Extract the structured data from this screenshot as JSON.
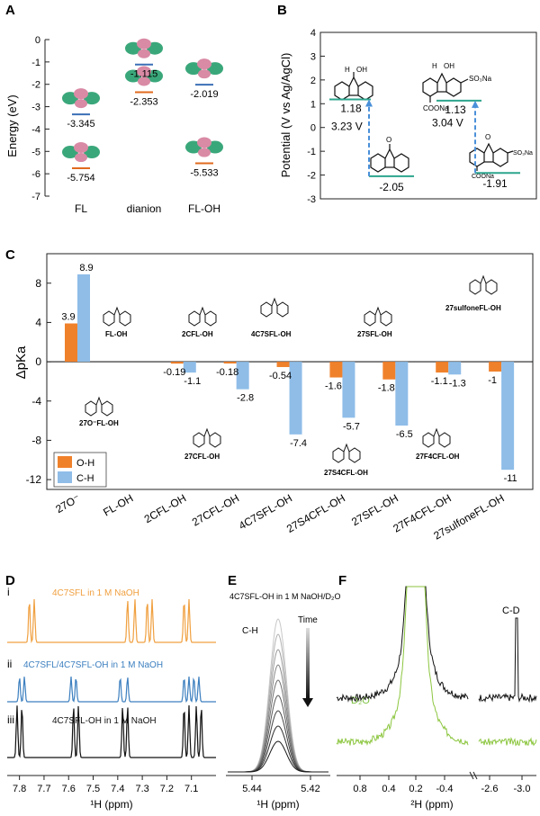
{
  "panels": {
    "A": {
      "label": "A",
      "ylabel": "Energy (eV)",
      "yticks": [
        "0",
        "-1",
        "-2",
        "-3",
        "-4",
        "-5",
        "-6",
        "-7"
      ],
      "categories": [
        "FL",
        "dianion",
        "FL-OH"
      ],
      "levels": [
        {
          "mol": "FL",
          "lumo": "-3.345",
          "homo": "-5.754"
        },
        {
          "mol": "dianion",
          "lumo": "-1.115",
          "homo": "-2.353"
        },
        {
          "mol": "FL-OH",
          "lumo": "-2.019",
          "homo": "-5.533"
        }
      ],
      "colors": {
        "lumo": "#3b6fb6",
        "homo": "#e06a1e",
        "lobe_green": "#3aa77a",
        "lobe_pink": "#d98aa5"
      }
    },
    "B": {
      "label": "B",
      "ylabel": "Potential (V vs Ag/AgCl)",
      "yticks": [
        "4",
        "3",
        "2",
        "1",
        "0",
        "-1",
        "-2",
        "-3"
      ],
      "values": {
        "fl_oh": "1.18",
        "fl_o": "-2.05",
        "s_oh": "1.13",
        "s_o": "-1.91"
      },
      "gaps": {
        "left": "3.23 V",
        "right": "3.04 V"
      },
      "subs": {
        "so3na": "SO₃Na",
        "coona": "COONa",
        "oh": "OH",
        "h": "H",
        "om": "O"
      },
      "colors": {
        "level": "#2ca58d",
        "arrow": "#4a90d9"
      }
    },
    "C": {
      "label": "C",
      "ylabel": "ΔpKa",
      "yticks": [
        "8",
        "4",
        "0",
        "-4",
        "-8",
        "-12"
      ],
      "legend": [
        "O-H",
        "C-H"
      ],
      "compounds": [
        "FL-OH",
        "2CFL-OH",
        "4C7SFL-OH",
        "27SFL-OH",
        "27sulfoneFL-OH",
        "27O⁻FL-OH",
        "27CFL-OH",
        "27S4CFL-OH",
        "27F4CFL-OH"
      ],
      "colors": {
        "oh": "#f0812b",
        "ch": "#8fbde8"
      }
    },
    "D": {
      "label": "D",
      "traces": [
        {
          "tag": "i",
          "text": "4C7SFL in 1 M NaOH",
          "color": "#f0a040"
        },
        {
          "tag": "ii",
          "text": "4C7SFL/4C7SFL-OH in 1 M NaOH",
          "color": "#3c7fbf"
        },
        {
          "tag": "iii",
          "text": "4C7SFL-OH in 1 M NaOH",
          "color": "#111111"
        }
      ],
      "xticks": [
        "7.8",
        "7.7",
        "7.6",
        "7.5",
        "7.4",
        "7.3",
        "7.2",
        "7.1"
      ],
      "xlabel": "¹H (ppm)"
    },
    "E": {
      "label": "E",
      "title": "4C7SFL-OH in 1 M NaOH/D₂O",
      "peak": "C-H",
      "time": "Time",
      "xticks": [
        "5.44",
        "5.42"
      ],
      "xlabel": "¹H (ppm)"
    },
    "F": {
      "label": "F",
      "peak": "C-D",
      "solvent": "D₂O",
      "xticks": [
        "0.8",
        "0.4",
        "0.2",
        "-0.4",
        "-2.6",
        "-3.0"
      ],
      "xlabel": "²H (ppm)"
    }
  },
  "chart_data": [
    {
      "type": "bar",
      "title": "",
      "xlabel": "",
      "ylabel": "ΔpKa",
      "ylim": [
        -13,
        11
      ],
      "categories": [
        "27O⁻",
        "FL-OH",
        "2CFL-OH",
        "27CFL-OH",
        "4C7SFL-OH",
        "27S4CFL-OH",
        "27SFL-OH",
        "27F4CFL-OH",
        "27sulfoneFL-OH"
      ],
      "series": [
        {
          "name": "O-H",
          "values": [
            3.9,
            0,
            -0.19,
            -0.18,
            -0.54,
            -1.6,
            -1.8,
            -1.1,
            -1
          ]
        },
        {
          "name": "C-H",
          "values": [
            8.9,
            0,
            -1.1,
            -2.8,
            -7.4,
            -5.7,
            -6.5,
            -1.3,
            -11
          ]
        }
      ],
      "value_labels": {
        "O-H": [
          "3.9",
          "",
          "-0.19",
          "-0.18",
          "-0.54",
          "-1.6",
          "-1.8",
          "-1.1",
          "-1"
        ],
        "C-H": [
          "8.9",
          "",
          "-1.1",
          "-2.8",
          "-7.4",
          "-5.7",
          "-6.5",
          "-1.3",
          "-11"
        ]
      },
      "legend": "lower-left",
      "grid": false
    }
  ]
}
